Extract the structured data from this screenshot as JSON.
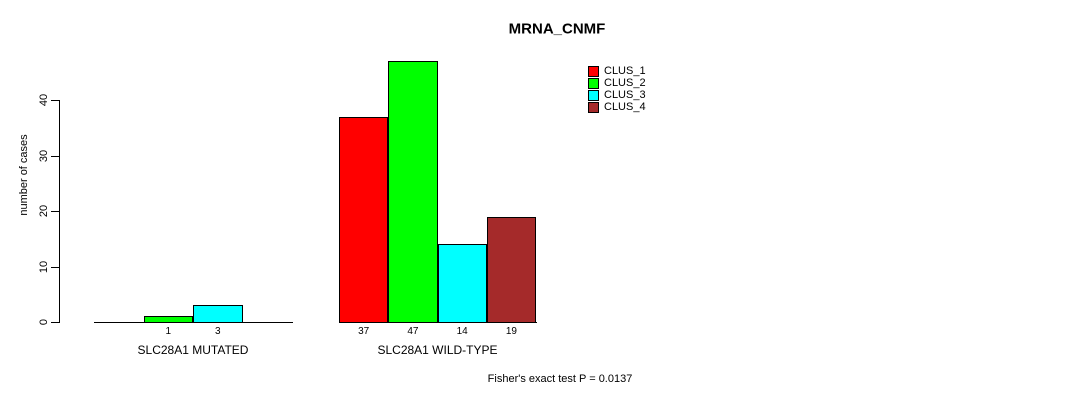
{
  "chart_data": {
    "type": "bar",
    "title": "MRNA_CNMF",
    "ylabel": "number of cases",
    "xlabel": "",
    "ylim": [
      0,
      40
    ],
    "yticks": [
      0,
      10,
      20,
      30,
      40
    ],
    "grid": false,
    "legend_position": "top-right",
    "categories": [
      "SLC28A1 MUTATED",
      "SLC28A1 WILD-TYPE"
    ],
    "series": [
      {
        "name": "CLUS_1",
        "color": "#ff0000",
        "values": [
          0,
          37
        ]
      },
      {
        "name": "CLUS_2",
        "color": "#00ff00",
        "values": [
          1,
          47
        ]
      },
      {
        "name": "CLUS_3",
        "color": "#00ffff",
        "values": [
          3,
          14
        ]
      },
      {
        "name": "CLUS_4",
        "color": "#a52a2a",
        "values": [
          0,
          19
        ]
      }
    ],
    "value_labels_shown": "only bars with value > 0",
    "annotation": "Fisher's exact test P = 0.0137"
  }
}
